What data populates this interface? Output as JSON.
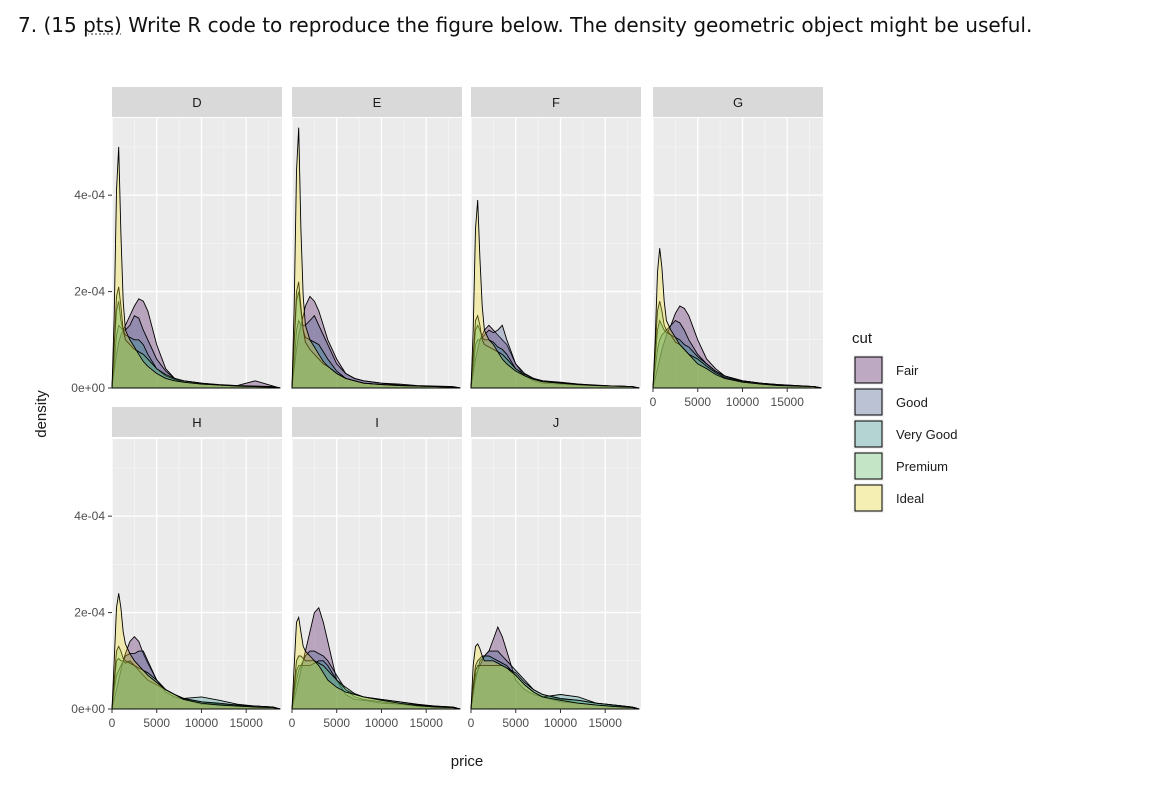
{
  "question": {
    "number": "7.",
    "points_open": "(15",
    "points_word": "pts)",
    "text": "Write R code to reproduce the figure below. The density geometric object might be useful."
  },
  "chart_data": {
    "type": "area",
    "subtype": "faceted-density",
    "xlabel": "price",
    "ylabel": "density",
    "xlim": [
      0,
      19000
    ],
    "ylim": [
      0,
      0.00056
    ],
    "x_ticks": [
      0,
      5000,
      10000,
      15000
    ],
    "x_tick_labels": [
      "0",
      "5000",
      "10000",
      "15000"
    ],
    "y_ticks": [
      0,
      0.0002,
      0.0004
    ],
    "y_tick_labels": [
      "0e+00",
      "2e-04",
      "4e-04"
    ],
    "grid": true,
    "legend": {
      "title": "cut",
      "position": "right",
      "entries": [
        "Fair",
        "Good",
        "Very Good",
        "Premium",
        "Ideal"
      ],
      "colors": [
        "#440154",
        "#3b528b",
        "#21908c",
        "#5dc863",
        "#fde725"
      ]
    },
    "fill_alpha": 0.3,
    "x_grid": [
      0,
      250,
      500,
      750,
      1000,
      1250,
      1500,
      2000,
      2500,
      3000,
      3500,
      4000,
      5000,
      6000,
      7000,
      8000,
      10000,
      12000,
      14000,
      16000,
      18000,
      18800
    ],
    "facets": [
      {
        "label": "D",
        "series": {
          "Fair": [
            0,
            3.5e-05,
            7e-05,
            9.5e-05,
            0.00011,
            0.00012,
            0.00013,
            0.00015,
            0.00017,
            0.000185,
            0.00018,
            0.00016,
            9e-05,
            4e-05,
            2e-05,
            1.5e-05,
            1e-05,
            6e-06,
            5e-06,
            1.5e-05,
            4e-06,
            0
          ],
          "Good": [
            0,
            5e-05,
            0.00011,
            0.00013,
            0.000125,
            0.00012,
            0.00012,
            0.00013,
            0.00015,
            0.000145,
            0.00012,
            0.0001,
            6e-05,
            3.5e-05,
            2e-05,
            1.5e-05,
            1e-05,
            6e-06,
            4e-06,
            3e-06,
            2e-06,
            0
          ],
          "Very Good": [
            0,
            8e-05,
            0.00016,
            0.00018,
            0.00014,
            0.00012,
            0.00011,
            0.000105,
            0.0001,
            0.0001,
            9e-05,
            7e-05,
            4e-05,
            2.5e-05,
            1.8e-05,
            1.2e-05,
            8e-06,
            6e-06,
            4e-06,
            3e-06,
            2e-06,
            0
          ],
          "Premium": [
            0,
            9e-05,
            0.00019,
            0.00021,
            0.00017,
            0.00012,
            0.0001,
            9e-05,
            8e-05,
            7.5e-05,
            7e-05,
            6e-05,
            4e-05,
            2.8e-05,
            2e-05,
            1.5e-05,
            1e-05,
            7e-06,
            5e-06,
            4e-06,
            3e-06,
            0
          ],
          "Ideal": [
            0,
            0.00015,
            0.00041,
            0.0005,
            0.00032,
            0.00018,
            0.00012,
            0.0001,
            8.5e-05,
            7e-05,
            5.5e-05,
            4.5e-05,
            3e-05,
            2e-05,
            1.5e-05,
            1.2e-05,
            8e-06,
            6e-06,
            4e-06,
            3e-06,
            2e-06,
            0
          ]
        }
      },
      {
        "label": "E",
        "series": {
          "Fair": [
            0,
            4e-05,
            8e-05,
            0.00011,
            0.00013,
            0.00015,
            0.00017,
            0.00019,
            0.00018,
            0.00016,
            0.00013,
            0.0001,
            6e-05,
            3e-05,
            2e-05,
            1.5e-05,
            1e-05,
            8e-06,
            5e-06,
            4e-06,
            3e-06,
            0
          ],
          "Good": [
            0,
            5e-05,
            0.00012,
            0.00014,
            0.00013,
            0.00013,
            0.00013,
            0.00014,
            0.00015,
            0.00013,
            0.00011,
            9e-05,
            5e-05,
            3e-05,
            2e-05,
            1.5e-05,
            1e-05,
            6e-06,
            4e-06,
            3e-06,
            2e-06,
            0
          ],
          "Very Good": [
            0,
            9e-05,
            0.00018,
            0.0002,
            0.00016,
            0.00012,
            0.000105,
            0.0001,
            9.5e-05,
            9e-05,
            7.5e-05,
            6e-05,
            3.5e-05,
            2e-05,
            1.5e-05,
            1e-05,
            7e-06,
            5e-06,
            4e-06,
            3e-06,
            2e-06,
            0
          ],
          "Premium": [
            0,
            0.0001,
            0.0002,
            0.00022,
            0.00017,
            0.00012,
            9.5e-05,
            8e-05,
            7e-05,
            6e-05,
            5e-05,
            4.5e-05,
            3e-05,
            2e-05,
            1.5e-05,
            1e-05,
            7e-06,
            5e-06,
            4e-06,
            3e-06,
            2e-06,
            0
          ],
          "Ideal": [
            0,
            0.00017,
            0.00045,
            0.00054,
            0.00033,
            0.00019,
            0.00013,
            0.0001,
            8.5e-05,
            7e-05,
            5.5e-05,
            4.5e-05,
            3e-05,
            2e-05,
            1.5e-05,
            1e-05,
            7e-06,
            5e-06,
            4e-06,
            3e-06,
            2e-06,
            0
          ]
        }
      },
      {
        "label": "F",
        "series": {
          "Fair": [
            0,
            3e-05,
            6e-05,
            8e-05,
            0.0001,
            0.00011,
            0.00012,
            0.00013,
            0.00012,
            0.00011,
            0.0001,
            9e-05,
            5e-05,
            2.5e-05,
            1.5e-05,
            1e-05,
            8e-06,
            6e-06,
            5e-06,
            4e-06,
            3e-06,
            0
          ],
          "Good": [
            0,
            4e-05,
            9e-05,
            0.0001,
            0.0001,
            0.000105,
            0.00011,
            0.00012,
            0.000115,
            0.00012,
            0.00013,
            0.0001,
            5e-05,
            3e-05,
            2e-05,
            1.5e-05,
            1.2e-05,
            8e-06,
            5e-06,
            4e-06,
            3e-06,
            0
          ],
          "Very Good": [
            0,
            6e-05,
            0.00012,
            0.00013,
            0.00012,
            0.000105,
            0.0001,
            0.0001,
            9.5e-05,
            8.5e-05,
            8e-05,
            7e-05,
            4e-05,
            2.5e-05,
            1.8e-05,
            1.3e-05,
            1e-05,
            7e-06,
            5e-06,
            4e-06,
            3e-06,
            0
          ],
          "Premium": [
            0,
            7e-05,
            0.00014,
            0.00015,
            0.00013,
            0.0001,
            9e-05,
            8.5e-05,
            8e-05,
            7.5e-05,
            7e-05,
            6e-05,
            4e-05,
            2.8e-05,
            2e-05,
            1.5e-05,
            1.1e-05,
            8e-06,
            6e-06,
            4e-06,
            3e-06,
            0
          ],
          "Ideal": [
            0,
            0.00012,
            0.00033,
            0.00039,
            0.00027,
            0.00017,
            0.00012,
            0.0001,
            9e-05,
            7.5e-05,
            6e-05,
            5e-05,
            3.5e-05,
            2.5e-05,
            1.8e-05,
            1.3e-05,
            1e-05,
            7e-06,
            5e-06,
            4e-06,
            3e-06,
            0
          ]
        }
      },
      {
        "label": "G",
        "series": {
          "Fair": [
            0,
            2e-05,
            4e-05,
            6e-05,
            8e-05,
            9.5e-05,
            0.00011,
            0.00013,
            0.000155,
            0.00017,
            0.000165,
            0.00015,
            0.0001,
            6e-05,
            4e-05,
            2.5e-05,
            1.5e-05,
            1e-05,
            6e-06,
            4e-06,
            3e-06,
            0
          ],
          "Good": [
            0,
            4e-05,
            8e-05,
            0.0001,
            0.00011,
            0.000115,
            0.00012,
            0.00013,
            0.00014,
            0.000135,
            0.00012,
            0.0001,
            7e-05,
            5e-05,
            3.5e-05,
            2.5e-05,
            1.5e-05,
            1e-05,
            7e-06,
            5e-06,
            3e-06,
            0
          ],
          "Very Good": [
            0,
            6e-05,
            0.00012,
            0.00014,
            0.00013,
            0.00012,
            0.000115,
            0.00011,
            0.000105,
            0.0001,
            9e-05,
            8.5e-05,
            6.5e-05,
            5e-05,
            3.5e-05,
            2.5e-05,
            1.5e-05,
            1e-05,
            7e-06,
            5e-06,
            3e-06,
            0
          ],
          "Premium": [
            0,
            8e-05,
            0.00016,
            0.00018,
            0.00016,
            0.00013,
            0.00012,
            0.00011,
            9.5e-05,
            9e-05,
            8e-05,
            7e-05,
            6e-05,
            4.5e-05,
            3.2e-05,
            2.2e-05,
            1.4e-05,
            1e-05,
            6e-06,
            4e-06,
            3e-06,
            0
          ],
          "Ideal": [
            0,
            0.0001,
            0.00024,
            0.00029,
            0.00025,
            0.00018,
            0.00014,
            0.00012,
            0.000105,
            9e-05,
            8e-05,
            7e-05,
            5e-05,
            4e-05,
            2.8e-05,
            2e-05,
            1.2e-05,
            8e-06,
            5e-06,
            4e-06,
            3e-06,
            0
          ]
        }
      },
      {
        "label": "H",
        "series": {
          "Fair": [
            0,
            2e-05,
            4e-05,
            6e-05,
            8e-05,
            0.0001,
            0.000115,
            0.00014,
            0.00015,
            0.00014,
            0.000115,
            9.5e-05,
            6e-05,
            3.5e-05,
            2.5e-05,
            2e-05,
            1e-05,
            8e-06,
            6e-06,
            4e-06,
            3e-06,
            0
          ],
          "Good": [
            0,
            4e-05,
            7e-05,
            8e-05,
            9e-05,
            0.0001,
            0.00011,
            0.000115,
            0.000115,
            0.00012,
            0.00012,
            0.0001,
            6e-05,
            4e-05,
            3e-05,
            2.2e-05,
            1.5e-05,
            1e-05,
            8e-06,
            6e-06,
            4e-06,
            0
          ],
          "Very Good": [
            0,
            5e-05,
            0.0001,
            0.000105,
            0.0001,
            0.0001,
            9.5e-05,
            0.0001,
            9e-05,
            8e-05,
            7e-05,
            6e-05,
            5e-05,
            4e-05,
            3e-05,
            2.2e-05,
            2.5e-05,
            1.8e-05,
            1e-05,
            6e-06,
            4e-06,
            0
          ],
          "Premium": [
            0,
            6e-05,
            0.00012,
            0.00013,
            0.00012,
            0.000105,
            0.0001,
            9.5e-05,
            9e-05,
            8.5e-05,
            8e-05,
            7.5e-05,
            6e-05,
            4e-05,
            3e-05,
            2.2e-05,
            1.5e-05,
            1.2e-05,
            8e-06,
            6e-06,
            4e-06,
            0
          ],
          "Ideal": [
            0,
            0.0001,
            0.00021,
            0.00024,
            0.00021,
            0.00016,
            0.000135,
            0.000115,
            0.0001,
            9e-05,
            8e-05,
            7e-05,
            5.5e-05,
            4e-05,
            3e-05,
            2e-05,
            1.2e-05,
            8e-06,
            6e-06,
            4e-06,
            3e-06,
            0
          ]
        }
      },
      {
        "label": "I",
        "series": {
          "Fair": [
            0,
            2e-05,
            4e-05,
            6e-05,
            8e-05,
            0.0001,
            0.00012,
            0.00016,
            0.0002,
            0.00021,
            0.00018,
            0.00014,
            6e-05,
            3e-05,
            2e-05,
            1.8e-05,
            1.2e-05,
            1e-05,
            8e-06,
            6e-06,
            4e-06,
            0
          ],
          "Good": [
            0,
            3e-05,
            6e-05,
            8e-05,
            9e-05,
            0.0001,
            0.00011,
            0.00012,
            0.00012,
            0.000115,
            0.00011,
            0.0001,
            7e-05,
            4e-05,
            2.5e-05,
            2e-05,
            1.5e-05,
            1e-05,
            6e-06,
            4e-06,
            3e-06,
            0
          ],
          "Very Good": [
            0,
            4e-05,
            8e-05,
            9e-05,
            9e-05,
            9e-05,
            9e-05,
            9e-05,
            9.5e-05,
            0.0001,
            0.0001,
            9e-05,
            6e-05,
            4e-05,
            3e-05,
            2.5e-05,
            2e-05,
            1.5e-05,
            1e-05,
            6e-06,
            4e-06,
            0
          ],
          "Premium": [
            0,
            5e-05,
            0.0001,
            0.00011,
            0.00011,
            0.000105,
            0.0001,
            0.0001,
            0.0001,
            9.5e-05,
            9e-05,
            8e-05,
            6e-05,
            4.5e-05,
            3.2e-05,
            2.5e-05,
            2e-05,
            1.5e-05,
            9e-06,
            5e-06,
            3e-06,
            0
          ],
          "Ideal": [
            0,
            9e-05,
            0.00018,
            0.00019,
            0.00016,
            0.00013,
            0.00012,
            0.00011,
            0.0001,
            9e-05,
            7.5e-05,
            6e-05,
            4.5e-05,
            3.5e-05,
            3e-05,
            2.5e-05,
            1.8e-05,
            1.2e-05,
            7e-06,
            4e-06,
            3e-06,
            0
          ]
        }
      },
      {
        "label": "J",
        "series": {
          "Fair": [
            0,
            3e-05,
            6e-05,
            8e-05,
            0.0001,
            0.000105,
            0.00011,
            0.00012,
            0.000145,
            0.00017,
            0.00015,
            0.00012,
            6e-05,
            4e-05,
            3e-05,
            2.5e-05,
            1.5e-05,
            1.2e-05,
            8e-06,
            6e-06,
            4e-06,
            0
          ],
          "Good": [
            0,
            4e-05,
            7e-05,
            8e-05,
            9e-05,
            0.0001,
            0.00011,
            0.00012,
            0.00012,
            0.00012,
            0.00011,
            0.0001,
            8e-05,
            6e-05,
            4e-05,
            3e-05,
            2e-05,
            1.8e-05,
            1.2e-05,
            8e-06,
            4e-06,
            0
          ],
          "Very Good": [
            0,
            5e-05,
            9e-05,
            0.0001,
            0.000105,
            0.00011,
            0.00011,
            0.00011,
            0.000105,
            0.0001,
            9.5e-05,
            9e-05,
            7e-05,
            5e-05,
            3.5e-05,
            2.5e-05,
            3e-05,
            2.5e-05,
            1.2e-05,
            8e-06,
            4e-06,
            0
          ],
          "Premium": [
            0,
            4e-05,
            8e-05,
            9e-05,
            9e-05,
            9e-05,
            9e-05,
            9e-05,
            9e-05,
            9e-05,
            9e-05,
            8.5e-05,
            7.5e-05,
            5.5e-05,
            4e-05,
            3e-05,
            2.2e-05,
            1.8e-05,
            1.2e-05,
            8e-06,
            4e-06,
            0
          ],
          "Ideal": [
            0,
            9e-05,
            0.00013,
            0.000135,
            0.000125,
            0.00011,
            0.0001,
            0.0001,
            0.0001,
            9.5e-05,
            9e-05,
            8.5e-05,
            7e-05,
            5e-05,
            3.5e-05,
            2.5e-05,
            1.8e-05,
            1.2e-05,
            8e-06,
            5e-06,
            3e-06,
            0
          ]
        }
      }
    ]
  }
}
